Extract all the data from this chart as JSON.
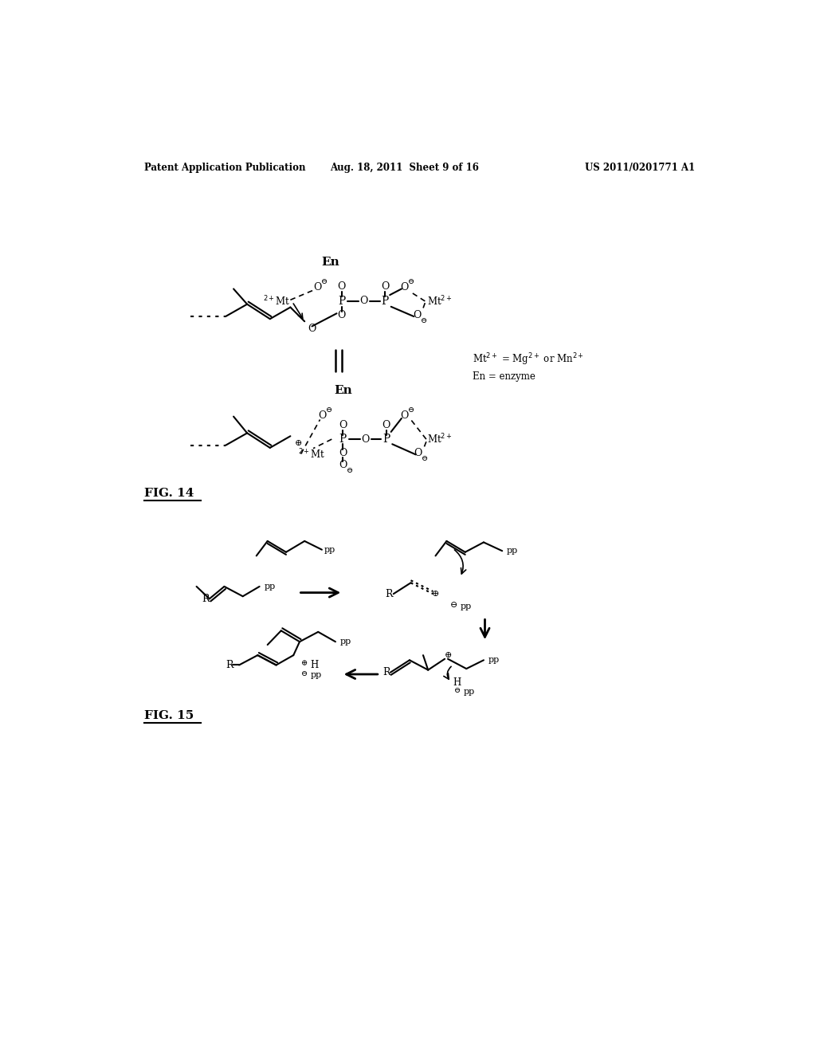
{
  "header_left": "Patent Application Publication",
  "header_center": "Aug. 18, 2011  Sheet 9 of 16",
  "header_right": "US 2011/0201771 A1",
  "fig14_label": "FIG. 14",
  "fig15_label": "FIG. 15",
  "note1": "Mt²⁺ = Mg²⁺ or Mn²⁺",
  "note2": "En = enzyme",
  "bg_color": "#ffffff",
  "text_color": "#000000"
}
